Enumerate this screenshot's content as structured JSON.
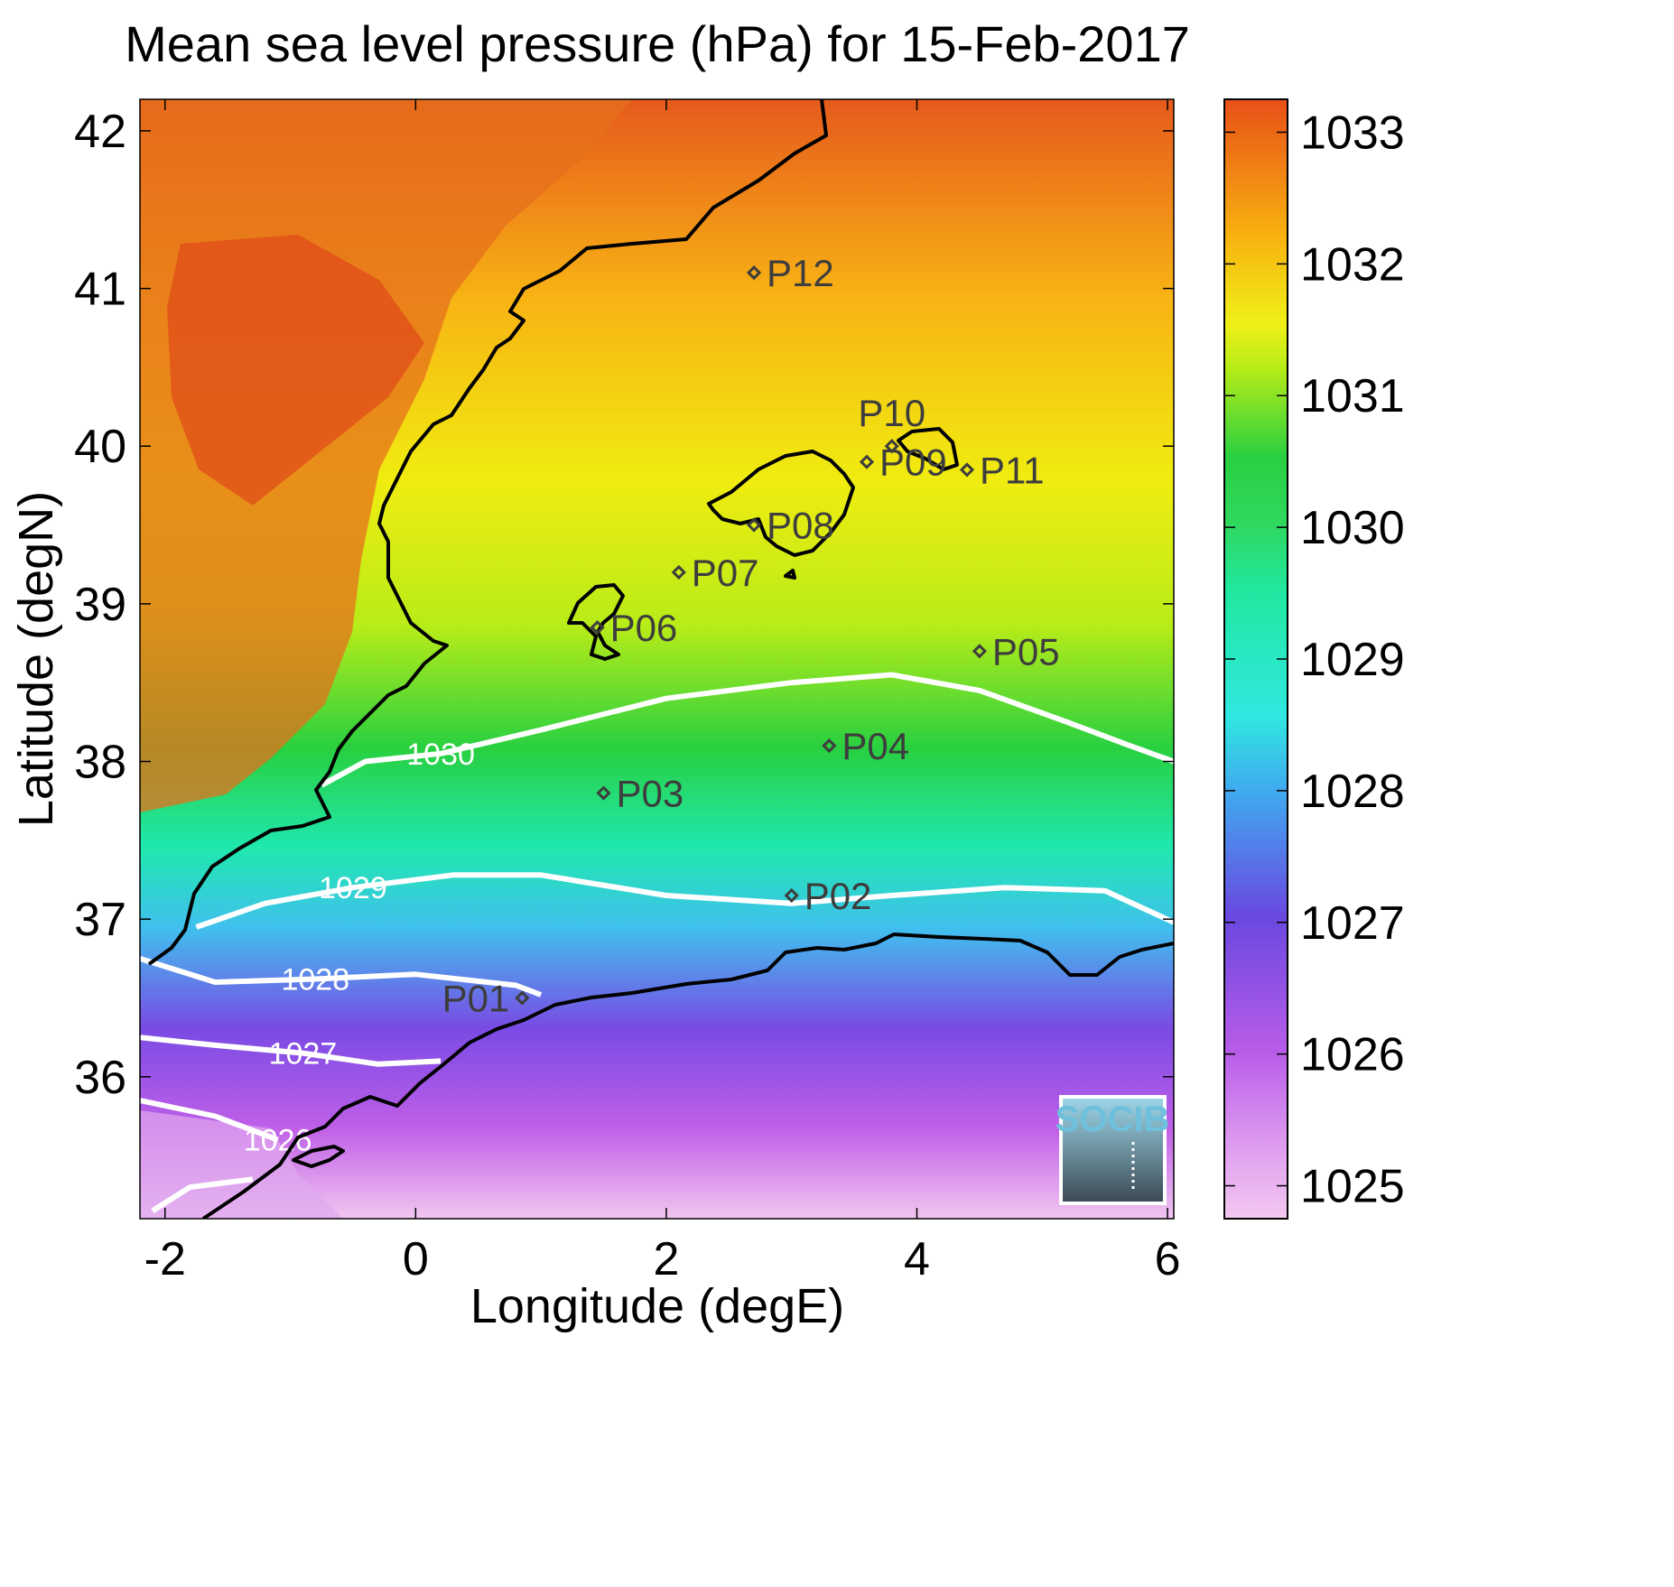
{
  "title": "Mean sea level pressure (hPa) for 15-Feb-2017",
  "xlabel": "Longitude (degE)",
  "ylabel": "Latitude (degN)",
  "x_ticks": [
    {
      "value": -2,
      "label": "-2"
    },
    {
      "value": 0,
      "label": "0"
    },
    {
      "value": 2,
      "label": "2"
    },
    {
      "value": 4,
      "label": "4"
    },
    {
      "value": 6,
      "label": "6"
    }
  ],
  "y_ticks": [
    {
      "value": 36,
      "label": "36"
    },
    {
      "value": 37,
      "label": "37"
    },
    {
      "value": 38,
      "label": "38"
    },
    {
      "value": 39,
      "label": "39"
    },
    {
      "value": 40,
      "label": "40"
    },
    {
      "value": 41,
      "label": "41"
    },
    {
      "value": 42,
      "label": "42"
    }
  ],
  "colorbar": {
    "range": [
      1024.75,
      1033.25
    ],
    "ticks": [
      {
        "value": 1025,
        "label": "1025"
      },
      {
        "value": 1026,
        "label": "1026"
      },
      {
        "value": 1027,
        "label": "1027"
      },
      {
        "value": 1028,
        "label": "1028"
      },
      {
        "value": 1029,
        "label": "1029"
      },
      {
        "value": 1030,
        "label": "1030"
      },
      {
        "value": 1031,
        "label": "1031"
      },
      {
        "value": 1032,
        "label": "1032"
      },
      {
        "value": 1033,
        "label": "1033"
      }
    ],
    "colors": [
      "#f4c8f0",
      "#b85ce8",
      "#6a48e0",
      "#3bd4f0",
      "#20e8a8",
      "#28d040",
      "#e8f018",
      "#f8b010",
      "#e85018"
    ]
  },
  "logo": {
    "text": "SOCIB"
  },
  "chart_data": {
    "type": "heatmap",
    "title": "Mean sea level pressure (hPa) for 15-Feb-2017",
    "xlabel": "Longitude (degE)",
    "ylabel": "Latitude (degN)",
    "xlim": [
      -2.2,
      6.05
    ],
    "ylim": [
      35.1,
      42.2
    ],
    "colorbar_label": "",
    "grid": false,
    "stations": [
      {
        "name": "P01",
        "lon": 0.85,
        "lat": 36.5
      },
      {
        "name": "P02",
        "lon": 3.0,
        "lat": 37.15
      },
      {
        "name": "P03",
        "lon": 1.5,
        "lat": 37.8
      },
      {
        "name": "P04",
        "lon": 3.3,
        "lat": 38.1
      },
      {
        "name": "P05",
        "lon": 4.5,
        "lat": 38.7
      },
      {
        "name": "P06",
        "lon": 1.45,
        "lat": 38.85
      },
      {
        "name": "P07",
        "lon": 2.1,
        "lat": 39.2
      },
      {
        "name": "P08",
        "lon": 2.7,
        "lat": 39.5
      },
      {
        "name": "P09",
        "lon": 3.6,
        "lat": 39.9
      },
      {
        "name": "P10",
        "lon": 3.8,
        "lat": 40.0
      },
      {
        "name": "P11",
        "lon": 4.4,
        "lat": 39.85
      },
      {
        "name": "P12",
        "lon": 2.7,
        "lat": 41.1
      }
    ],
    "contours": [
      {
        "level": 1030,
        "label": "1030",
        "points": [
          [
            -0.75,
            37.85
          ],
          [
            -0.4,
            38.0
          ],
          [
            0.2,
            38.05
          ],
          [
            1.0,
            38.2
          ],
          [
            2.0,
            38.4
          ],
          [
            3.0,
            38.5
          ],
          [
            3.8,
            38.55
          ],
          [
            4.5,
            38.45
          ],
          [
            5.2,
            38.25
          ],
          [
            5.7,
            38.1
          ],
          [
            6.05,
            38.0
          ]
        ]
      },
      {
        "level": 1029,
        "label": "1029",
        "points": [
          [
            -1.75,
            36.95
          ],
          [
            -1.2,
            37.1
          ],
          [
            -0.5,
            37.2
          ],
          [
            0.3,
            37.28
          ],
          [
            1.0,
            37.28
          ],
          [
            2.0,
            37.15
          ],
          [
            3.0,
            37.1
          ],
          [
            3.8,
            37.15
          ],
          [
            4.7,
            37.2
          ],
          [
            5.5,
            37.18
          ],
          [
            6.05,
            36.98
          ]
        ]
      },
      {
        "level": 1028,
        "label": "1028",
        "points": [
          [
            -2.2,
            36.75
          ],
          [
            -1.6,
            36.6
          ],
          [
            -0.8,
            36.62
          ],
          [
            0.0,
            36.65
          ],
          [
            0.8,
            36.58
          ],
          [
            1.0,
            36.52
          ]
        ]
      },
      {
        "level": 1027,
        "label": "1027",
        "points": [
          [
            -2.2,
            36.25
          ],
          [
            -1.6,
            36.2
          ],
          [
            -0.9,
            36.15
          ],
          [
            -0.3,
            36.08
          ],
          [
            0.2,
            36.1
          ]
        ]
      },
      {
        "level": 1026,
        "label": "1026",
        "points": [
          [
            -2.2,
            35.85
          ],
          [
            -1.6,
            35.75
          ],
          [
            -1.1,
            35.6
          ]
        ]
      },
      {
        "level": 1025,
        "label": "",
        "points": [
          [
            -2.1,
            35.15
          ],
          [
            -1.8,
            35.3
          ],
          [
            -1.3,
            35.35
          ]
        ]
      }
    ]
  }
}
